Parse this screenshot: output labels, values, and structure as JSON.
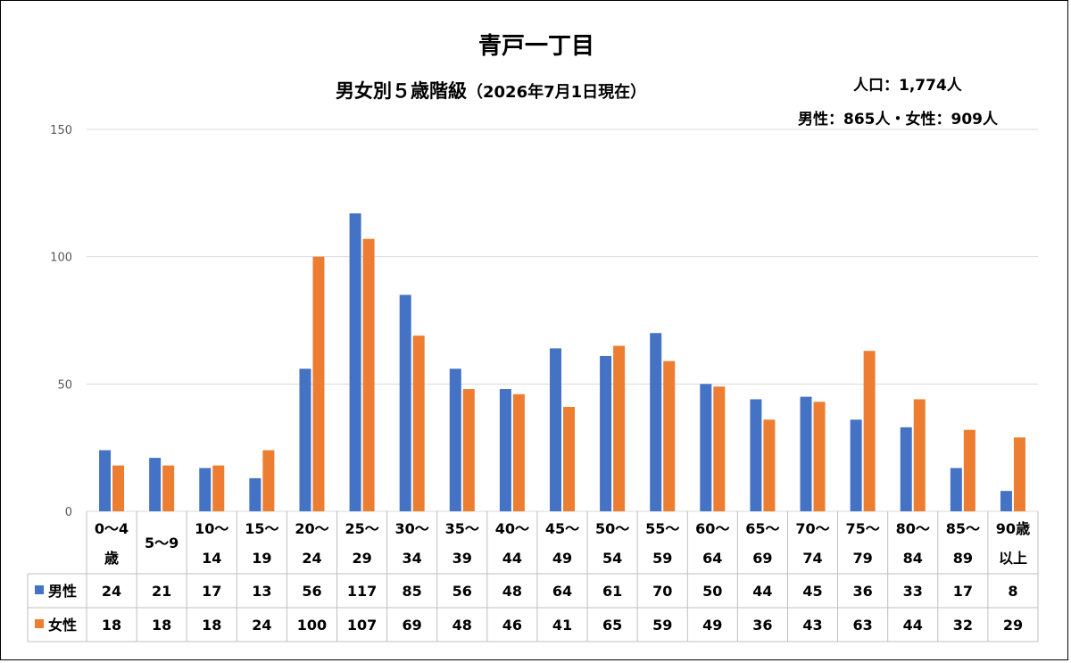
{
  "header": {
    "title": "青戸一丁目",
    "subtitle_main": "男女別５歳階級",
    "subtitle_date": "（2026年7月1日現在）",
    "population_line": "人口：1,774人",
    "gender_line": "男性：865人・女性：909人"
  },
  "colors": {
    "male": "#4472C4",
    "female": "#ED7D31",
    "grid": "#D9D9D9",
    "axis_text": "#595959"
  },
  "chart_data": {
    "type": "bar",
    "title": "青戸一丁目",
    "subtitle": "男女別５歳階級（2026年7月1日現在）",
    "ylim": [
      0,
      150
    ],
    "yticks": [
      0,
      50,
      100,
      150
    ],
    "grid": true,
    "legend": "in-table-left",
    "categories": [
      [
        "0～4",
        "歳"
      ],
      [
        "5～9"
      ],
      [
        "10～",
        "14"
      ],
      [
        "15～",
        "19"
      ],
      [
        "20～",
        "24"
      ],
      [
        "25～",
        "29"
      ],
      [
        "30～",
        "34"
      ],
      [
        "35～",
        "39"
      ],
      [
        "40～",
        "44"
      ],
      [
        "45～",
        "49"
      ],
      [
        "50～",
        "54"
      ],
      [
        "55～",
        "59"
      ],
      [
        "60～",
        "64"
      ],
      [
        "65～",
        "69"
      ],
      [
        "70～",
        "74"
      ],
      [
        "75～",
        "79"
      ],
      [
        "80～",
        "84"
      ],
      [
        "85～",
        "89"
      ],
      [
        "90歳",
        "以上"
      ]
    ],
    "series": [
      {
        "name": "男性",
        "color": "#4472C4",
        "values": [
          24,
          21,
          17,
          13,
          56,
          117,
          85,
          56,
          48,
          64,
          61,
          70,
          50,
          44,
          45,
          36,
          33,
          17,
          8
        ]
      },
      {
        "name": "女性",
        "color": "#ED7D31",
        "values": [
          18,
          18,
          18,
          24,
          100,
          107,
          69,
          48,
          46,
          41,
          65,
          59,
          49,
          36,
          43,
          63,
          44,
          32,
          29
        ]
      }
    ]
  }
}
